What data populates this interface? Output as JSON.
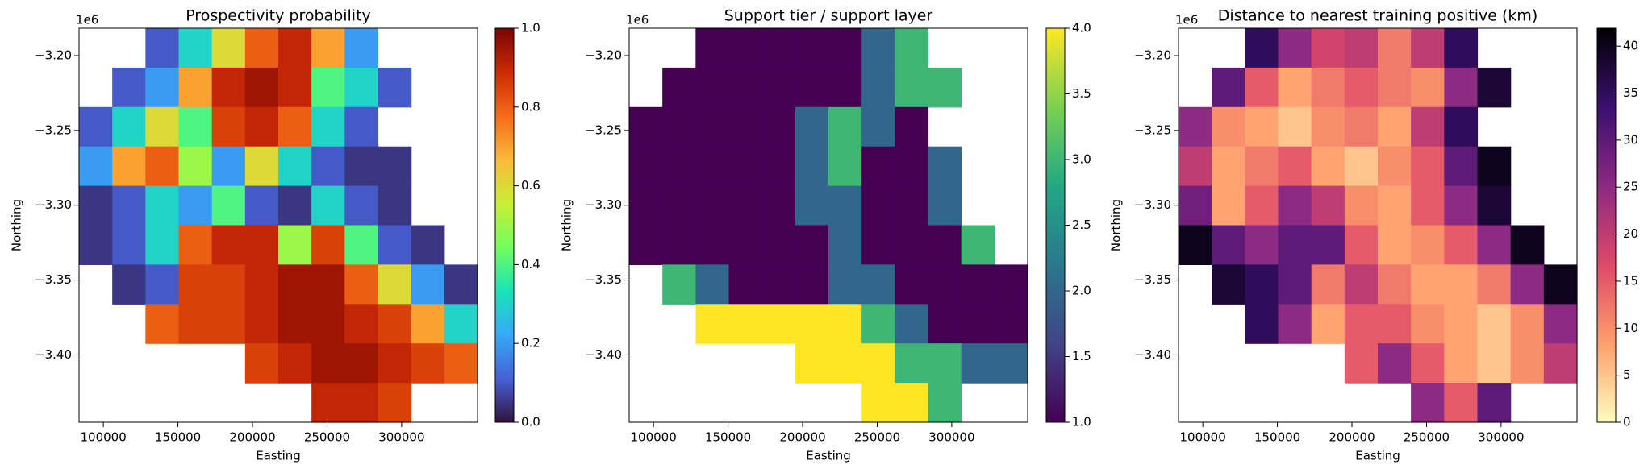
{
  "chart_data": [
    {
      "type": "heatmap",
      "title": "Prospectivity probability",
      "xlabel": "Easting",
      "ylabel": "Northing",
      "y_offset_label": "1e6",
      "xlim": [
        83700,
        350900
      ],
      "ylim": [
        -3445000,
        -3181700
      ],
      "xticks": [
        100000,
        150000,
        200000,
        250000,
        300000
      ],
      "yticks": [
        {
          "value": -3200000,
          "label": "−3.20"
        },
        {
          "value": -3250000,
          "label": "−3.25"
        },
        {
          "value": -3300000,
          "label": "−3.30"
        },
        {
          "value": -3350000,
          "label": "−3.35"
        },
        {
          "value": -3400000,
          "label": "−3.40"
        }
      ],
      "clim": [
        0,
        1
      ],
      "cticks": [
        {
          "value": 0,
          "label": "0.0"
        },
        0.2,
        0.4,
        0.6,
        0.8,
        {
          "value": 1,
          "label": "1.0"
        }
      ],
      "colormap": [
        "#30123b",
        "#4662d7",
        "#36aaf9",
        "#1ae4b6",
        "#72fe5e",
        "#c8ef34",
        "#faba39",
        "#f66b19",
        "#ca2a04",
        "#7a0403"
      ],
      "values": [
        [
          null,
          null,
          0.1,
          0.3,
          0.6,
          0.8,
          0.9,
          0.7,
          0.2,
          null,
          null,
          null
        ],
        [
          null,
          0.1,
          0.2,
          0.7,
          0.9,
          0.95,
          0.9,
          0.4,
          0.3,
          0.1,
          null,
          null
        ],
        [
          0.1,
          0.3,
          0.6,
          0.4,
          0.85,
          0.9,
          0.8,
          0.3,
          0.1,
          null,
          null,
          null
        ],
        [
          0.2,
          0.7,
          0.8,
          0.5,
          0.2,
          0.6,
          0.3,
          0.1,
          0.05,
          0.05,
          null,
          null
        ],
        [
          0.05,
          0.1,
          0.3,
          0.2,
          0.4,
          0.1,
          0.05,
          0.3,
          0.1,
          0.05,
          null,
          null
        ],
        [
          0.05,
          0.1,
          0.3,
          0.8,
          0.9,
          0.9,
          0.5,
          0.85,
          0.4,
          0.1,
          0.05,
          null
        ],
        [
          null,
          0.05,
          0.1,
          0.85,
          0.85,
          0.9,
          0.95,
          0.95,
          0.8,
          0.6,
          0.2,
          0.05
        ],
        [
          null,
          null,
          0.8,
          0.85,
          0.85,
          0.9,
          0.95,
          0.95,
          0.9,
          0.85,
          0.7,
          0.3
        ],
        [
          null,
          null,
          null,
          null,
          null,
          0.85,
          0.9,
          0.95,
          0.95,
          0.9,
          0.85,
          0.8
        ],
        [
          null,
          null,
          null,
          null,
          null,
          null,
          null,
          0.9,
          0.9,
          0.85,
          null,
          null
        ]
      ]
    },
    {
      "type": "heatmap",
      "title": "Support tier / support layer",
      "xlabel": "Easting",
      "ylabel": "Northing",
      "y_offset_label": "1e6",
      "xlim": [
        83700,
        350900
      ],
      "ylim": [
        -3445000,
        -3181700
      ],
      "xticks": [
        100000,
        150000,
        200000,
        250000,
        300000
      ],
      "yticks": [
        {
          "value": -3200000,
          "label": "−3.20"
        },
        {
          "value": -3250000,
          "label": "−3.25"
        },
        {
          "value": -3300000,
          "label": "−3.30"
        },
        {
          "value": -3350000,
          "label": "−3.35"
        },
        {
          "value": -3400000,
          "label": "−3.40"
        }
      ],
      "clim": [
        1,
        4
      ],
      "cticks": [
        {
          "value": 1,
          "label": "1.0"
        },
        1.5,
        {
          "value": 2,
          "label": "2.0"
        },
        2.5,
        {
          "value": 3,
          "label": "3.0"
        },
        3.5,
        {
          "value": 4,
          "label": "4.0"
        }
      ],
      "colormap": [
        "#440154",
        "#414487",
        "#2a788e",
        "#22a884",
        "#7ad151",
        "#fde725"
      ],
      "values": [
        [
          null,
          null,
          1,
          1,
          1,
          1,
          1,
          2,
          3,
          null,
          null,
          null
        ],
        [
          null,
          1,
          1,
          1,
          1,
          1,
          1,
          2,
          3,
          3,
          null,
          null
        ],
        [
          1,
          1,
          1,
          1,
          1,
          2,
          3,
          2,
          1,
          null,
          null,
          null
        ],
        [
          1,
          1,
          1,
          1,
          1,
          2,
          3,
          1,
          1,
          2,
          null,
          null
        ],
        [
          1,
          1,
          1,
          1,
          1,
          2,
          2,
          1,
          1,
          2,
          null,
          null
        ],
        [
          1,
          1,
          1,
          1,
          1,
          1,
          2,
          1,
          1,
          1,
          3,
          null
        ],
        [
          null,
          3,
          2,
          1,
          1,
          1,
          2,
          2,
          1,
          1,
          1,
          1
        ],
        [
          null,
          null,
          4,
          4,
          4,
          4,
          4,
          3,
          2,
          1,
          1,
          1
        ],
        [
          null,
          null,
          null,
          null,
          null,
          4,
          4,
          4,
          3,
          3,
          2,
          2
        ],
        [
          null,
          null,
          null,
          null,
          null,
          null,
          null,
          4,
          4,
          3,
          null,
          null
        ]
      ]
    },
    {
      "type": "heatmap",
      "title": "Distance to nearest training positive (km)",
      "xlabel": "Easting",
      "ylabel": "Northing",
      "y_offset_label": "1e6",
      "xlim": [
        83700,
        350900
      ],
      "ylim": [
        -3445000,
        -3181700
      ],
      "xticks": [
        100000,
        150000,
        200000,
        250000,
        300000
      ],
      "yticks": [
        {
          "value": -3200000,
          "label": "−3.20"
        },
        {
          "value": -3250000,
          "label": "−3.25"
        },
        {
          "value": -3300000,
          "label": "−3.30"
        },
        {
          "value": -3350000,
          "label": "−3.35"
        },
        {
          "value": -3400000,
          "label": "−3.40"
        }
      ],
      "clim": [
        0,
        41.9
      ],
      "cticks": [
        0,
        5,
        10,
        15,
        20,
        25,
        30,
        35,
        40
      ],
      "colormap": [
        "#fcfdbf",
        "#fe9f6d",
        "#de4968",
        "#8c2981",
        "#3b0f70",
        "#000004"
      ],
      "values": [
        [
          null,
          null,
          35,
          25,
          18,
          20,
          12,
          20,
          35,
          null,
          null,
          null
        ],
        [
          null,
          30,
          15,
          8,
          12,
          15,
          12,
          10,
          25,
          38,
          null,
          null
        ],
        [
          25,
          10,
          8,
          5,
          10,
          12,
          8,
          20,
          35,
          null,
          null,
          null
        ],
        [
          20,
          8,
          12,
          15,
          8,
          5,
          10,
          15,
          30,
          40,
          null,
          null
        ],
        [
          28,
          8,
          15,
          25,
          20,
          10,
          8,
          15,
          25,
          38,
          null,
          null
        ],
        [
          40,
          30,
          25,
          30,
          30,
          15,
          8,
          10,
          15,
          25,
          40,
          null
        ],
        [
          null,
          38,
          35,
          30,
          12,
          20,
          12,
          8,
          8,
          12,
          25,
          40
        ],
        [
          null,
          null,
          35,
          25,
          8,
          15,
          15,
          10,
          8,
          5,
          10,
          25
        ],
        [
          null,
          null,
          null,
          null,
          null,
          15,
          25,
          15,
          8,
          5,
          10,
          20
        ],
        [
          null,
          null,
          null,
          null,
          null,
          null,
          null,
          25,
          15,
          30,
          null,
          null
        ]
      ]
    }
  ]
}
